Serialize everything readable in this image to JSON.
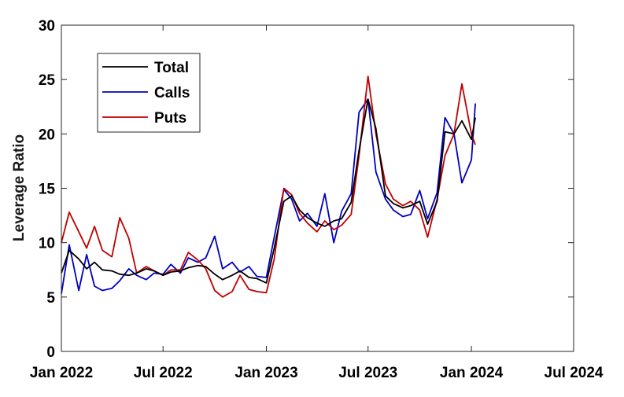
{
  "chart_data": {
    "type": "line",
    "title": "",
    "xlabel": "",
    "ylabel": "Leverage Ratio",
    "xlim": [
      "2022-01-01",
      "2024-07-01"
    ],
    "ylim": [
      0,
      30
    ],
    "x_ticks": [
      "2022-01-01",
      "2022-07-01",
      "2023-01-01",
      "2023-07-01",
      "2024-01-01",
      "2024-07-01"
    ],
    "x_tick_labels": [
      "Jan 2022",
      "Jul 2022",
      "Jan 2023",
      "Jul 2023",
      "Jan 2024",
      "Jul 2024"
    ],
    "y_ticks": [
      0,
      5,
      10,
      15,
      20,
      25,
      30
    ],
    "grid": false,
    "legend_position": "top-left",
    "x": [
      "2022-01-01",
      "2022-01-15",
      "2022-02-01",
      "2022-02-15",
      "2022-03-01",
      "2022-03-15",
      "2022-04-01",
      "2022-04-15",
      "2022-05-01",
      "2022-05-15",
      "2022-06-01",
      "2022-06-15",
      "2022-07-01",
      "2022-07-15",
      "2022-08-01",
      "2022-08-15",
      "2022-09-01",
      "2022-09-15",
      "2022-10-01",
      "2022-10-15",
      "2022-11-01",
      "2022-11-15",
      "2022-12-01",
      "2022-12-15",
      "2023-01-01",
      "2023-01-15",
      "2023-02-01",
      "2023-02-15",
      "2023-03-01",
      "2023-03-15",
      "2023-04-01",
      "2023-04-15",
      "2023-05-01",
      "2023-05-15",
      "2023-06-01",
      "2023-06-15",
      "2023-07-01",
      "2023-07-15",
      "2023-08-01",
      "2023-08-15",
      "2023-09-01",
      "2023-09-15",
      "2023-10-01",
      "2023-10-15",
      "2023-11-01",
      "2023-11-15",
      "2023-12-01",
      "2023-12-15",
      "2024-01-01",
      "2024-01-08"
    ],
    "series": [
      {
        "name": "Total",
        "color": "#000000",
        "values": [
          7.2,
          9.3,
          8.5,
          7.6,
          8.2,
          7.5,
          7.4,
          7.1,
          7.0,
          7.2,
          7.6,
          7.4,
          7.0,
          7.3,
          7.4,
          7.7,
          7.9,
          7.8,
          7.1,
          6.6,
          7.0,
          7.4,
          6.8,
          6.7,
          6.3,
          9.5,
          13.8,
          14.3,
          13.0,
          12.3,
          11.8,
          11.5,
          12.0,
          12.2,
          13.7,
          18.5,
          23.2,
          20.5,
          14.3,
          13.6,
          13.2,
          13.4,
          13.8,
          11.7,
          13.8,
          20.2,
          20.0,
          21.2,
          19.5,
          21.5
        ]
      },
      {
        "name": "Calls",
        "color": "#0000c0",
        "values": [
          5.3,
          9.8,
          5.6,
          8.9,
          6.0,
          5.6,
          5.8,
          6.5,
          7.6,
          7.0,
          6.6,
          7.2,
          7.1,
          8.0,
          7.2,
          8.6,
          8.2,
          8.6,
          10.6,
          7.6,
          8.2,
          7.3,
          7.8,
          6.9,
          6.8,
          10.5,
          14.9,
          14.0,
          12.0,
          12.7,
          11.5,
          14.5,
          10.0,
          12.9,
          14.5,
          22.0,
          23.2,
          16.5,
          14.0,
          13.0,
          12.4,
          12.6,
          14.8,
          12.2,
          14.6,
          21.5,
          20.0,
          15.5,
          17.6,
          22.8
        ]
      },
      {
        "name": "Puts",
        "color": "#c00000",
        "values": [
          10.0,
          12.8,
          11.0,
          9.5,
          11.5,
          9.3,
          8.7,
          12.3,
          10.4,
          7.2,
          7.8,
          7.4,
          7.0,
          7.5,
          7.5,
          9.1,
          8.4,
          7.6,
          5.6,
          5.0,
          5.5,
          7.0,
          5.7,
          5.5,
          5.4,
          8.5,
          15.0,
          14.4,
          12.7,
          11.8,
          11.0,
          12.0,
          11.2,
          11.6,
          12.6,
          18.0,
          25.3,
          20.0,
          15.4,
          14.0,
          13.4,
          13.8,
          13.0,
          10.5,
          14.0,
          18.0,
          20.0,
          24.6,
          20.0,
          19.0
        ]
      }
    ]
  }
}
